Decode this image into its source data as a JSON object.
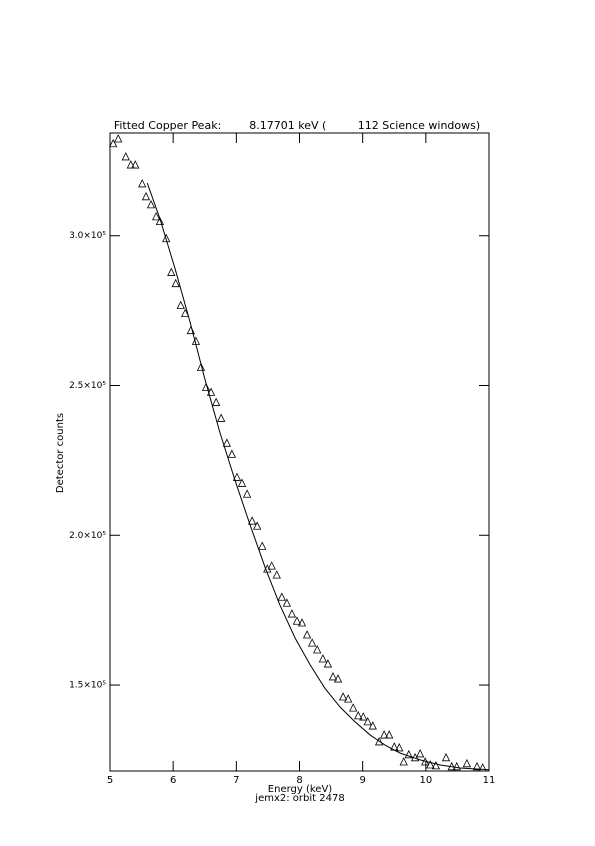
{
  "chart_data": {
    "type": "scatter",
    "title": "Fitted Copper Peak:        8.17701 keV (         112 Science windows)",
    "x_label": "Energy (keV)",
    "subtitle": "jemx2: orbit 2478",
    "y_label": "Detector counts",
    "xlim": [
      5,
      11
    ],
    "xticks": [
      5,
      6,
      7,
      8,
      9,
      10,
      11
    ],
    "ylim": [
      121300,
      334300
    ],
    "yticks": [
      {
        "value": 150000,
        "label": "1.5×10⁵"
      },
      {
        "value": 200000,
        "label": "2.0×10⁵"
      },
      {
        "value": 250000,
        "label": "2.5×10⁵"
      },
      {
        "value": 300000,
        "label": "3.0×10⁵"
      }
    ],
    "series": [
      {
        "style": "markers",
        "marker": "triangle",
        "color": "#000000",
        "x": [
          5.05,
          5.13,
          5.25,
          5.33,
          5.4,
          5.51,
          5.57,
          5.65,
          5.73,
          5.79,
          5.89,
          5.97,
          6.04,
          6.12,
          6.19,
          6.28,
          6.36,
          6.44,
          6.52,
          6.6,
          6.68,
          6.76,
          6.85,
          6.93,
          7.01,
          7.09,
          7.17,
          7.25,
          7.33,
          7.41,
          7.49,
          7.56,
          7.64,
          7.72,
          7.8,
          7.88,
          7.96,
          8.04,
          8.12,
          8.2,
          8.28,
          8.37,
          8.45,
          8.53,
          8.61,
          8.69,
          8.77,
          8.85,
          8.93,
          9.01,
          9.08,
          9.16,
          9.26,
          9.34,
          9.42,
          9.5,
          9.58,
          9.65,
          9.73,
          9.83,
          9.91,
          9.99,
          10.07,
          10.16,
          10.32,
          10.41,
          10.49,
          10.65,
          10.81,
          10.9
        ],
        "values": [
          330700,
          332300,
          326300,
          323600,
          323600,
          317300,
          313000,
          310300,
          306300,
          304700,
          299000,
          287700,
          284000,
          276700,
          274000,
          268300,
          264700,
          256000,
          249300,
          247700,
          244300,
          239000,
          230700,
          227000,
          219300,
          217300,
          213700,
          204700,
          203000,
          196300,
          188700,
          189700,
          186700,
          179300,
          177300,
          173700,
          171300,
          170700,
          166700,
          164000,
          161700,
          158700,
          157000,
          152700,
          152000,
          146000,
          145300,
          142300,
          139700,
          139300,
          137700,
          136300,
          131000,
          133300,
          133300,
          129300,
          129000,
          124300,
          126700,
          125700,
          127000,
          124300,
          123300,
          123000,
          125700,
          122700,
          122700,
          123700,
          122700,
          122300
        ]
      },
      {
        "style": "line",
        "color": "#000000",
        "x": [
          5.59,
          5.79,
          6.03,
          6.27,
          6.5,
          6.74,
          6.98,
          7.22,
          7.46,
          7.69,
          7.93,
          8.17,
          8.4,
          8.64,
          8.88,
          9.12,
          9.35,
          9.59,
          9.91,
          10.23,
          10.54,
          11.0
        ],
        "values": [
          317600,
          305700,
          289000,
          271000,
          252300,
          234300,
          218300,
          203300,
          189000,
          176700,
          165700,
          156700,
          149000,
          142700,
          137700,
          133300,
          130000,
          127300,
          125000,
          123300,
          122300,
          121700
        ]
      }
    ]
  }
}
